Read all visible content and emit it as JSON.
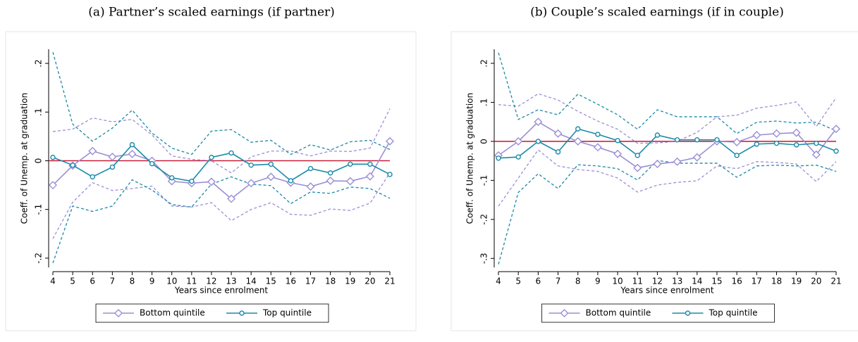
{
  "chart_data": [
    {
      "type": "line",
      "title": "(a) Partner’s scaled earnings (if partner)",
      "xlabel": "Years since enrolment",
      "ylabel": "Coeff. of Unemp. at graduation",
      "x": [
        4,
        5,
        6,
        7,
        8,
        9,
        10,
        11,
        12,
        13,
        14,
        15,
        16,
        17,
        18,
        19,
        20,
        21
      ],
      "xlim": [
        4,
        21
      ],
      "xticks": [
        4,
        5,
        6,
        7,
        8,
        9,
        10,
        11,
        12,
        13,
        14,
        15,
        16,
        17,
        18,
        19,
        20,
        21
      ],
      "ylim": [
        -0.219,
        0.229
      ],
      "yticks": [
        {
          "value": 0.2,
          "label": ".2"
        },
        {
          "value": 0.1,
          "label": ".1"
        },
        0,
        {
          "value": -0.1,
          "label": "-.1"
        },
        {
          "value": -0.2,
          "label": "-.2"
        }
      ],
      "reference_line": {
        "value": 0,
        "color": "#c8102e"
      },
      "legend": "bottom",
      "series": [
        {
          "name": "Bottom quintile",
          "color": "#9c8fd6",
          "marker": "diamond",
          "values": [
            -0.05,
            -0.01,
            0.02,
            0.008,
            0.014,
            0,
            -0.042,
            -0.046,
            -0.043,
            -0.078,
            -0.046,
            -0.033,
            -0.045,
            -0.053,
            -0.041,
            -0.042,
            -0.032,
            0.04
          ],
          "ci_upper": [
            0.06,
            0.065,
            0.088,
            0.08,
            0.085,
            0.053,
            0.01,
            0.003,
            0,
            -0.025,
            0.008,
            0.02,
            0.02,
            0.01,
            0.02,
            0.019,
            0.026,
            0.107
          ],
          "ci_lower": [
            -0.16,
            -0.085,
            -0.045,
            -0.061,
            -0.057,
            -0.052,
            -0.093,
            -0.095,
            -0.086,
            -0.123,
            -0.1,
            -0.086,
            -0.11,
            -0.112,
            -0.099,
            -0.102,
            -0.087,
            -0.025
          ]
        },
        {
          "name": "Top quintile",
          "color": "#1a8aa8",
          "marker": "circle",
          "values": [
            0.007,
            -0.009,
            -0.033,
            -0.013,
            0.033,
            -0.006,
            -0.035,
            -0.042,
            0.007,
            0.016,
            -0.009,
            -0.007,
            -0.041,
            -0.016,
            -0.025,
            -0.007,
            -0.007,
            -0.028
          ],
          "ci_upper": [
            0.223,
            0.075,
            0.04,
            0.067,
            0.104,
            0.057,
            0.026,
            0.013,
            0.061,
            0.064,
            0.038,
            0.042,
            0.013,
            0.033,
            0.022,
            0.039,
            0.042,
            0.023
          ],
          "ci_lower": [
            -0.21,
            -0.093,
            -0.104,
            -0.093,
            -0.039,
            -0.06,
            -0.09,
            -0.095,
            -0.048,
            -0.033,
            -0.048,
            -0.051,
            -0.088,
            -0.064,
            -0.067,
            -0.054,
            -0.057,
            -0.077
          ]
        }
      ]
    },
    {
      "type": "line",
      "title": "(b) Couple’s scaled earnings (if in couple)",
      "xlabel": "Years since enrolment",
      "ylabel": "Coeff. of Unemp. at graduation",
      "x": [
        4,
        5,
        6,
        7,
        8,
        9,
        10,
        11,
        12,
        13,
        14,
        15,
        16,
        17,
        18,
        19,
        20,
        21
      ],
      "xlim": [
        4,
        21
      ],
      "xticks": [
        4,
        5,
        6,
        7,
        8,
        9,
        10,
        11,
        12,
        13,
        14,
        15,
        16,
        17,
        18,
        19,
        20,
        21
      ],
      "ylim": [
        -0.323,
        0.236
      ],
      "yticks": [
        {
          "value": 0.2,
          "label": ".2"
        },
        {
          "value": 0.1,
          "label": ".1"
        },
        0,
        {
          "value": -0.1,
          "label": "-.1"
        },
        {
          "value": -0.2,
          "label": "-.2"
        },
        {
          "value": -0.3,
          "label": "-.3"
        }
      ],
      "reference_line": {
        "value": 0,
        "color": "#c8102e"
      },
      "legend": "bottom",
      "series": [
        {
          "name": "Bottom quintile",
          "color": "#9c8fd6",
          "marker": "diamond",
          "values": [
            -0.036,
            0,
            0.05,
            0.02,
            0,
            -0.015,
            -0.032,
            -0.068,
            -0.058,
            -0.052,
            -0.041,
            0,
            -0.002,
            0.016,
            0.02,
            0.022,
            -0.034,
            0.032
          ],
          "ci_upper": [
            0.094,
            0.09,
            0.122,
            0.106,
            0.077,
            0.052,
            0.031,
            -0.005,
            -0.004,
            0,
            0.023,
            0.063,
            0.067,
            0.085,
            0.092,
            0.101,
            0.038,
            0.112
          ],
          "ci_lower": [
            -0.166,
            -0.094,
            -0.022,
            -0.063,
            -0.072,
            -0.077,
            -0.094,
            -0.13,
            -0.112,
            -0.105,
            -0.101,
            -0.063,
            -0.07,
            -0.052,
            -0.054,
            -0.058,
            -0.103,
            -0.052
          ]
        },
        {
          "name": "Top quintile",
          "color": "#1a8aa8",
          "marker": "circle",
          "values": [
            -0.043,
            -0.04,
            0,
            -0.027,
            0.032,
            0.018,
            0.002,
            -0.036,
            0.016,
            0.004,
            0.004,
            0.004,
            -0.036,
            -0.007,
            -0.005,
            -0.009,
            -0.005,
            -0.025
          ],
          "ci_upper": [
            0.227,
            0.056,
            0.081,
            0.068,
            0.121,
            0.095,
            0.068,
            0.031,
            0.081,
            0.063,
            0.063,
            0.063,
            0.02,
            0.049,
            0.052,
            0.047,
            0.049,
            0.027
          ],
          "ci_lower": [
            -0.315,
            -0.131,
            -0.083,
            -0.121,
            -0.06,
            -0.063,
            -0.07,
            -0.099,
            -0.049,
            -0.056,
            -0.056,
            -0.056,
            -0.092,
            -0.063,
            -0.061,
            -0.063,
            -0.061,
            -0.077
          ]
        }
      ]
    }
  ]
}
